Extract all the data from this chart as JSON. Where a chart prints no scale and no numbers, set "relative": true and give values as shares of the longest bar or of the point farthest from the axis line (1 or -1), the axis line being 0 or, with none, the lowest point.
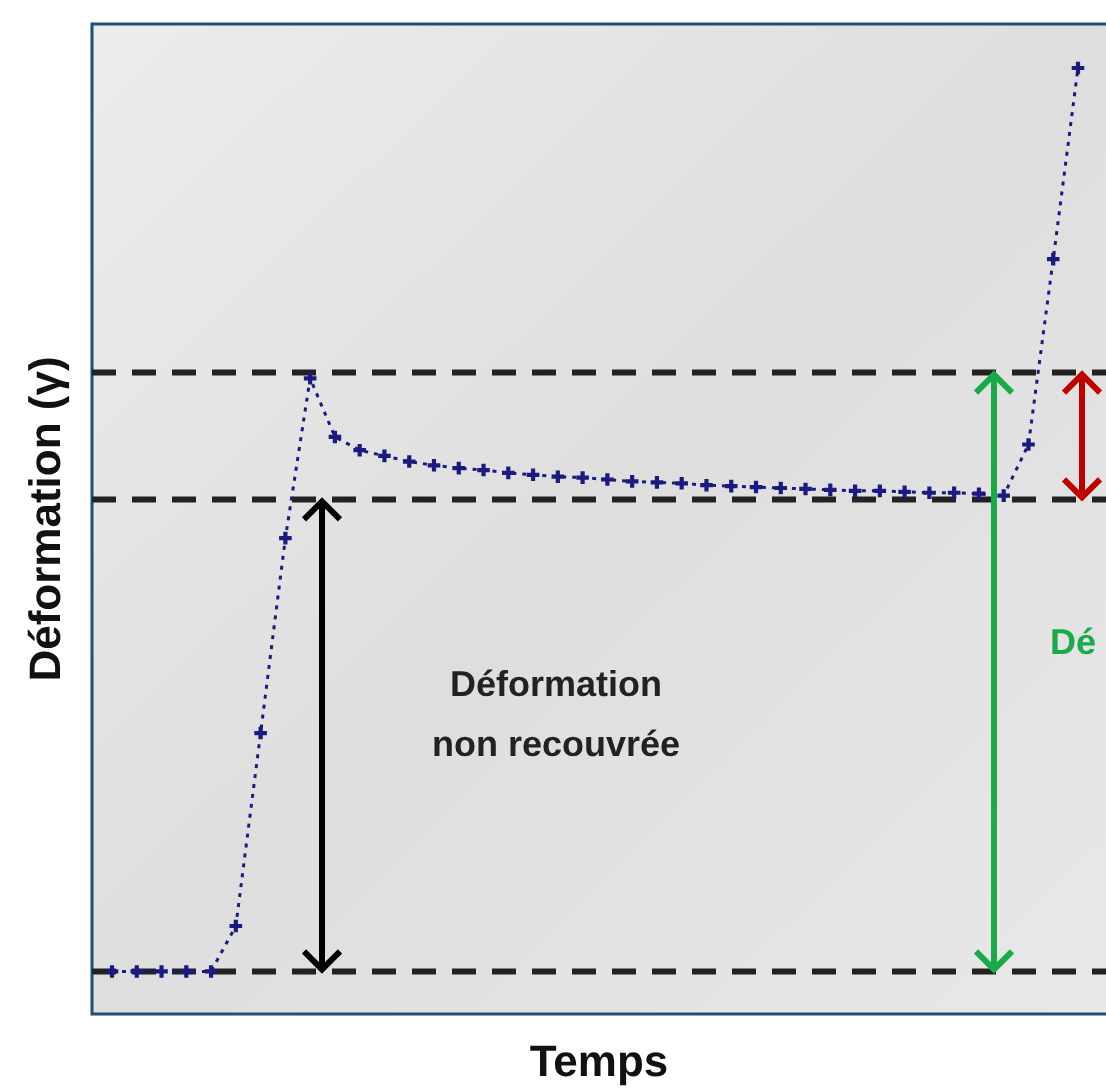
{
  "chart_data": {
    "type": "line",
    "relative": true,
    "xlabel": "Temps",
    "ylabel": "Déformation (γ)",
    "marker": "cross",
    "line_style": "dotted",
    "categories": [
      null,
      null,
      null,
      null,
      null,
      null,
      null,
      null,
      null,
      null,
      null,
      null,
      null,
      null,
      null,
      null,
      null,
      null,
      null,
      null,
      null,
      null,
      null,
      null,
      null,
      null,
      null,
      null,
      null,
      null,
      null,
      null,
      null,
      null,
      null,
      null,
      null,
      null,
      null,
      null
    ],
    "series": [
      {
        "color": "#1a1a80",
        "values": [
          0.045,
          0.045,
          0.045,
          0.045,
          0.045,
          0.093,
          0.297,
          0.503,
          0.672,
          0.61,
          0.596,
          0.59,
          0.584,
          0.58,
          0.577,
          0.575,
          0.572,
          0.57,
          0.568,
          0.567,
          0.565,
          0.563,
          0.562,
          0.561,
          0.559,
          0.558,
          0.557,
          0.556,
          0.555,
          0.554,
          0.553,
          0.553,
          0.552,
          0.551,
          0.551,
          0.55,
          0.548,
          0.602,
          0.798,
          1
        ]
      }
    ],
    "ref_lines": [
      {
        "axis": "y",
        "value": 0.678,
        "color": "#222222",
        "line_style": "dashed"
      },
      {
        "axis": "y",
        "value": 0.544,
        "color": "#222222",
        "line_style": "dashed"
      },
      {
        "axis": "y",
        "value": 0.045,
        "color": "#222222",
        "line_style": "dashed"
      }
    ],
    "annotations": [
      "Déformation non recouvrée",
      "Dé"
    ]
  }
}
